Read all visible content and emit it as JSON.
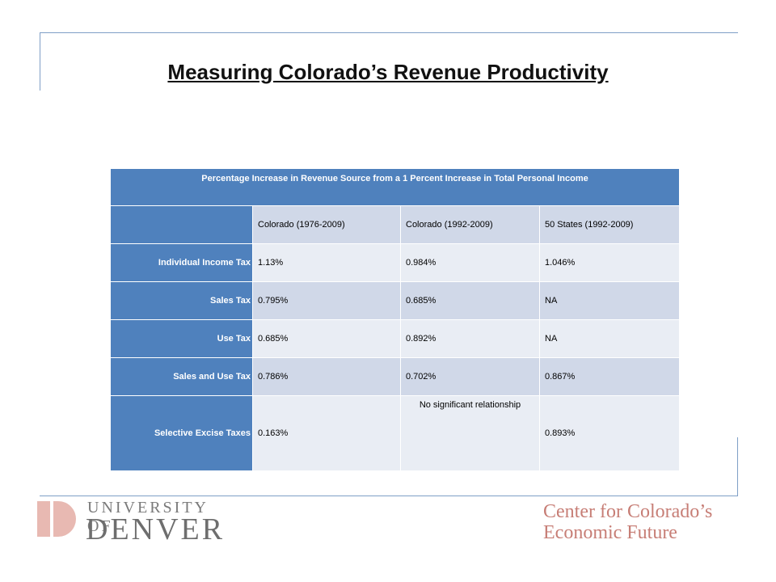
{
  "slide": {
    "title": "Measuring Colorado’s Revenue Productivity"
  },
  "table": {
    "caption": "Percentage Increase in Revenue Source from a 1 Percent Increase in Total Personal Income",
    "columns": [
      "",
      "Colorado (1976-2009)",
      "Colorado (1992-2009)",
      "50 States (1992-2009)"
    ],
    "rows": [
      {
        "label": "Individual Income Tax",
        "values": [
          "1.13%",
          "0.984%",
          "1.046%"
        ]
      },
      {
        "label": "Sales Tax",
        "values": [
          "0.795%",
          "0.685%",
          "NA"
        ]
      },
      {
        "label": "Use Tax",
        "values": [
          "0.685%",
          "0.892%",
          "NA"
        ]
      },
      {
        "label": "Sales and Use Tax",
        "values": [
          "0.786%",
          "0.702%",
          "0.867%"
        ]
      },
      {
        "label": "Selective Excise Taxes",
        "values": [
          "0.163%",
          "No significant relationship",
          "0.893%"
        ]
      }
    ]
  },
  "logos": {
    "du_line1": "UNIVERSITY OF",
    "du_line2": "DENVER",
    "du_color": "#e8b9b2",
    "ccef_line1": "Center for Colorado’s",
    "ccef_line2": "Economic Future",
    "ccef_color": "#c77e76"
  }
}
